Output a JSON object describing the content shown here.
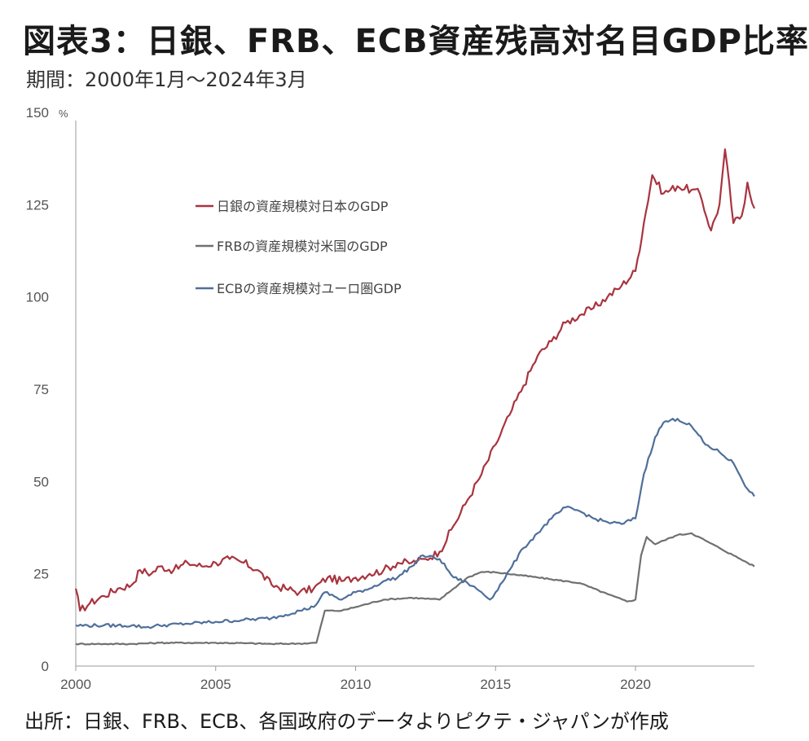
{
  "header": {
    "title": "図表3：日銀、FRB、ECB資産残高対名目GDP比率",
    "subtitle": "期間：2000年1月～2024年3月"
  },
  "footer": {
    "source": "出所：日銀、FRB、ECB、各国政府のデータよりピクテ・ジャパンが作成"
  },
  "chart_data": {
    "type": "line",
    "title": "図表3：日銀、FRB、ECB資産残高対名目GDP比率",
    "subtitle": "期間：2000年1月～2024年3月",
    "y_unit": "%",
    "xlim": [
      2000,
      2024.25
    ],
    "ylim": [
      0,
      150
    ],
    "x_ticks": [
      "2000",
      "2005",
      "2010",
      "2015",
      "2020"
    ],
    "y_ticks": [
      "150",
      "125",
      "100",
      "75",
      "50",
      "25",
      "0"
    ],
    "grid": false,
    "legend_position": "top-left",
    "series": [
      {
        "name": "日銀の資産規模対日本のGDP",
        "color": "#a8343f",
        "points": [
          [
            2000.0,
            21
          ],
          [
            2000.15,
            15
          ],
          [
            2000.5,
            17
          ],
          [
            2001.0,
            19
          ],
          [
            2001.5,
            21
          ],
          [
            2002.0,
            22
          ],
          [
            2002.3,
            26
          ],
          [
            2002.7,
            25
          ],
          [
            2003.0,
            27
          ],
          [
            2003.5,
            26
          ],
          [
            2004.0,
            28
          ],
          [
            2004.5,
            27
          ],
          [
            2005.0,
            28
          ],
          [
            2005.5,
            29
          ],
          [
            2006.0,
            28
          ],
          [
            2006.5,
            26
          ],
          [
            2007.0,
            22
          ],
          [
            2007.5,
            21
          ],
          [
            2008.0,
            20
          ],
          [
            2008.5,
            21
          ],
          [
            2009.0,
            24
          ],
          [
            2009.5,
            23
          ],
          [
            2010.0,
            24
          ],
          [
            2010.5,
            25
          ],
          [
            2011.0,
            26
          ],
          [
            2011.5,
            28
          ],
          [
            2012.0,
            28
          ],
          [
            2012.5,
            29
          ],
          [
            2013.0,
            31
          ],
          [
            2013.5,
            38
          ],
          [
            2014.0,
            45
          ],
          [
            2014.5,
            52
          ],
          [
            2015.0,
            60
          ],
          [
            2015.5,
            68
          ],
          [
            2016.0,
            76
          ],
          [
            2016.5,
            84
          ],
          [
            2017.0,
            88
          ],
          [
            2017.5,
            93
          ],
          [
            2018.0,
            95
          ],
          [
            2018.5,
            97
          ],
          [
            2019.0,
            100
          ],
          [
            2019.5,
            103
          ],
          [
            2020.0,
            107
          ],
          [
            2020.3,
            120
          ],
          [
            2020.6,
            133
          ],
          [
            2021.0,
            128
          ],
          [
            2021.5,
            130
          ],
          [
            2022.0,
            129
          ],
          [
            2022.3,
            128
          ],
          [
            2022.7,
            118
          ],
          [
            2023.0,
            125
          ],
          [
            2023.2,
            140
          ],
          [
            2023.5,
            120
          ],
          [
            2023.8,
            122
          ],
          [
            2024.0,
            131
          ],
          [
            2024.25,
            124
          ]
        ]
      },
      {
        "name": "FRBの資産規模対米国のGDP",
        "color": "#707070",
        "points": [
          [
            2000.0,
            6
          ],
          [
            2001.0,
            6
          ],
          [
            2002.0,
            6
          ],
          [
            2003.0,
            6.3
          ],
          [
            2004.0,
            6.3
          ],
          [
            2005.0,
            6.3
          ],
          [
            2006.0,
            6.2
          ],
          [
            2007.0,
            6.0
          ],
          [
            2008.0,
            6.1
          ],
          [
            2008.6,
            6.3
          ],
          [
            2008.9,
            15
          ],
          [
            2009.5,
            15
          ],
          [
            2010.0,
            16
          ],
          [
            2011.0,
            18
          ],
          [
            2012.0,
            18.5
          ],
          [
            2013.0,
            18
          ],
          [
            2013.5,
            21
          ],
          [
            2014.0,
            24
          ],
          [
            2014.5,
            25.5
          ],
          [
            2015.0,
            25.4
          ],
          [
            2016.0,
            24.5
          ],
          [
            2017.0,
            23.5
          ],
          [
            2018.0,
            22.5
          ],
          [
            2019.0,
            19.5
          ],
          [
            2019.7,
            17.5
          ],
          [
            2020.0,
            18
          ],
          [
            2020.2,
            30
          ],
          [
            2020.4,
            35
          ],
          [
            2020.7,
            33
          ],
          [
            2021.0,
            34
          ],
          [
            2021.5,
            35.5
          ],
          [
            2022.0,
            36
          ],
          [
            2022.5,
            34
          ],
          [
            2023.0,
            32
          ],
          [
            2023.5,
            30
          ],
          [
            2024.0,
            28
          ],
          [
            2024.25,
            27
          ]
        ]
      },
      {
        "name": "ECBの資産規模対ユーロ圏GDP",
        "color": "#4f6f9a",
        "points": [
          [
            2000.0,
            11
          ],
          [
            2001.0,
            11
          ],
          [
            2002.0,
            11
          ],
          [
            2002.5,
            10.5
          ],
          [
            2003.0,
            11
          ],
          [
            2004.0,
            11.5
          ],
          [
            2005.0,
            12
          ],
          [
            2006.0,
            12.5
          ],
          [
            2007.0,
            13
          ],
          [
            2008.0,
            15
          ],
          [
            2008.5,
            16
          ],
          [
            2008.9,
            20
          ],
          [
            2009.5,
            18
          ],
          [
            2010.0,
            20
          ],
          [
            2010.5,
            21
          ],
          [
            2011.0,
            23
          ],
          [
            2011.5,
            24
          ],
          [
            2012.0,
            27
          ],
          [
            2012.4,
            30
          ],
          [
            2013.0,
            29
          ],
          [
            2013.5,
            24
          ],
          [
            2014.0,
            22.5
          ],
          [
            2014.5,
            20
          ],
          [
            2014.8,
            18
          ],
          [
            2015.0,
            20
          ],
          [
            2015.5,
            26
          ],
          [
            2016.0,
            32
          ],
          [
            2016.5,
            36
          ],
          [
            2017.0,
            40
          ],
          [
            2017.5,
            43
          ],
          [
            2018.0,
            42
          ],
          [
            2018.5,
            40
          ],
          [
            2019.0,
            39
          ],
          [
            2019.5,
            38.5
          ],
          [
            2020.0,
            40
          ],
          [
            2020.3,
            52
          ],
          [
            2020.7,
            62
          ],
          [
            2021.0,
            66
          ],
          [
            2021.5,
            67
          ],
          [
            2022.0,
            65
          ],
          [
            2022.5,
            60
          ],
          [
            2023.0,
            58
          ],
          [
            2023.5,
            55
          ],
          [
            2024.0,
            48
          ],
          [
            2024.25,
            46
          ]
        ]
      }
    ]
  }
}
